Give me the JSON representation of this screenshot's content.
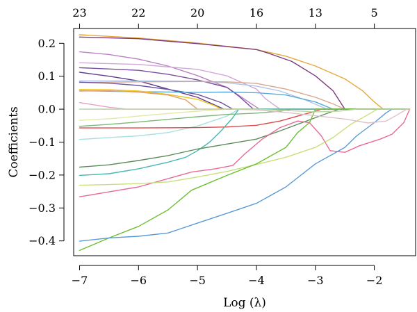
{
  "chart_data": {
    "type": "line",
    "title": "",
    "xlabel": "Log (λ)",
    "ylabel": "Coefficients",
    "xlim": [
      -7.1,
      -1.3
    ],
    "ylim": [
      -0.445,
      0.245
    ],
    "x_ticks": [
      {
        "value": -7,
        "label": "−7"
      },
      {
        "value": -6,
        "label": "−6"
      },
      {
        "value": -5,
        "label": "−5"
      },
      {
        "value": -4,
        "label": "−4"
      },
      {
        "value": -3,
        "label": "−3"
      },
      {
        "value": -2,
        "label": "−2"
      }
    ],
    "y_ticks": [
      {
        "value": 0.2,
        "label": "0.2"
      },
      {
        "value": 0.1,
        "label": "0.1"
      },
      {
        "value": 0.0,
        "label": "0.0"
      },
      {
        "value": -0.1,
        "label": "−0.1"
      },
      {
        "value": -0.2,
        "label": "−0.2"
      },
      {
        "value": -0.3,
        "label": "−0.3"
      },
      {
        "value": -0.4,
        "label": "−0.4"
      }
    ],
    "top_ticks": [
      {
        "value": -7,
        "label": "23"
      },
      {
        "value": -6,
        "label": "22"
      },
      {
        "value": -5,
        "label": "20"
      },
      {
        "value": -4,
        "label": "16"
      },
      {
        "value": -3,
        "label": "13"
      },
      {
        "value": -2,
        "label": "5"
      }
    ],
    "grid": false,
    "legend": "none",
    "series": [
      {
        "color": "#e6a83a",
        "points": [
          [
            -7,
            0.226
          ],
          [
            -6,
            0.216
          ],
          [
            -5,
            0.201
          ],
          [
            -4,
            0.181
          ],
          [
            -3.5,
            0.161
          ],
          [
            -3,
            0.131
          ],
          [
            -2.5,
            0.092
          ],
          [
            -2.2,
            0.056
          ],
          [
            -2.0,
            0.022
          ],
          [
            -1.85,
            0.0
          ],
          [
            -1.4,
            0.0
          ]
        ]
      },
      {
        "color": "#7b3a7a",
        "points": [
          [
            -7,
            0.219
          ],
          [
            -6,
            0.214
          ],
          [
            -5,
            0.199
          ],
          [
            -4.5,
            0.19
          ],
          [
            -4,
            0.181
          ],
          [
            -3.8,
            0.17
          ],
          [
            -3.4,
            0.145
          ],
          [
            -3.0,
            0.101
          ],
          [
            -2.7,
            0.056
          ],
          [
            -2.5,
            0.0
          ],
          [
            -1.4,
            0.0
          ]
        ]
      },
      {
        "color": "#b882c2",
        "points": [
          [
            -7,
            0.174
          ],
          [
            -6.5,
            0.166
          ],
          [
            -6,
            0.152
          ],
          [
            -5.5,
            0.131
          ],
          [
            -5,
            0.102
          ],
          [
            -4.5,
            0.066
          ],
          [
            -4.2,
            0.03
          ],
          [
            -3.95,
            0.0
          ],
          [
            -1.4,
            0.0
          ]
        ]
      },
      {
        "color": "#d1a8d8",
        "points": [
          [
            -7,
            0.141
          ],
          [
            -6,
            0.136
          ],
          [
            -5,
            0.121
          ],
          [
            -4.5,
            0.101
          ],
          [
            -4,
            0.061
          ],
          [
            -3.85,
            0.032
          ],
          [
            -3.6,
            0.0
          ],
          [
            -1.4,
            0.0
          ]
        ]
      },
      {
        "color": "#7a4c9e",
        "points": [
          [
            -7,
            0.126
          ],
          [
            -6,
            0.118
          ],
          [
            -5.5,
            0.106
          ],
          [
            -5,
            0.089
          ],
          [
            -4.5,
            0.066
          ],
          [
            -4.3,
            0.04
          ],
          [
            -4.05,
            0.0
          ],
          [
            -1.4,
            0.0
          ]
        ]
      },
      {
        "color": "#5d3a8a",
        "points": [
          [
            -7,
            0.112
          ],
          [
            -6.5,
            0.1
          ],
          [
            -6,
            0.086
          ],
          [
            -5.5,
            0.061
          ],
          [
            -5,
            0.036
          ],
          [
            -4.7,
            0.012
          ],
          [
            -4.55,
            0.0
          ],
          [
            -1.4,
            0.0
          ]
        ]
      },
      {
        "color": "#b0c4e8",
        "points": [
          [
            -7,
            0.086
          ],
          [
            -6,
            0.086
          ],
          [
            -5,
            0.085
          ],
          [
            -4.5,
            0.08
          ],
          [
            -4.0,
            0.07
          ],
          [
            -3.6,
            0.055
          ],
          [
            -3.2,
            0.03
          ],
          [
            -2.8,
            0.0
          ],
          [
            -1.4,
            0.0
          ]
        ]
      },
      {
        "color": "#d8a68a",
        "points": [
          [
            -7,
            0.081
          ],
          [
            -6,
            0.083
          ],
          [
            -5,
            0.084
          ],
          [
            -4.5,
            0.083
          ],
          [
            -4,
            0.078
          ],
          [
            -3.5,
            0.061
          ],
          [
            -3,
            0.036
          ],
          [
            -2.7,
            0.016
          ],
          [
            -2.5,
            0.0
          ],
          [
            -1.4,
            0.0
          ]
        ]
      },
      {
        "color": "#6b52a0",
        "points": [
          [
            -7,
            0.082
          ],
          [
            -6.5,
            0.079
          ],
          [
            -6,
            0.072
          ],
          [
            -5.5,
            0.06
          ],
          [
            -5,
            0.045
          ],
          [
            -4.6,
            0.02
          ],
          [
            -4.4,
            0.0
          ],
          [
            -1.4,
            0.0
          ]
        ]
      },
      {
        "color": "#5aa9d6",
        "points": [
          [
            -7,
            0.056
          ],
          [
            -6,
            0.053
          ],
          [
            -5,
            0.051
          ],
          [
            -4.5,
            0.052
          ],
          [
            -4,
            0.05
          ],
          [
            -3.5,
            0.043
          ],
          [
            -3,
            0.022
          ],
          [
            -2.7,
            0.0
          ],
          [
            -1.4,
            0.0
          ]
        ]
      },
      {
        "color": "#f0c418",
        "points": [
          [
            -7,
            0.06
          ],
          [
            -6.5,
            0.059
          ],
          [
            -6,
            0.055
          ],
          [
            -5.5,
            0.045
          ],
          [
            -5,
            0.03
          ],
          [
            -4.7,
            0.01
          ],
          [
            -4.6,
            0.0
          ],
          [
            -1.4,
            0.0
          ]
        ]
      },
      {
        "color": "#e8a0c8",
        "points": [
          [
            -7,
            0.02
          ],
          [
            -6.5,
            0.006
          ],
          [
            -6.2,
            0.0
          ],
          [
            -1.4,
            0.0
          ]
        ]
      },
      {
        "color": "#e0a070",
        "points": [
          [
            -7,
            0.055
          ],
          [
            -6.5,
            0.056
          ],
          [
            -6,
            0.052
          ],
          [
            -5.5,
            0.043
          ],
          [
            -5.2,
            0.028
          ],
          [
            -5.0,
            0.0
          ],
          [
            -1.4,
            0.0
          ]
        ]
      },
      {
        "color": "#e2e8a6",
        "points": [
          [
            -7,
            -0.034
          ],
          [
            -6.5,
            -0.029
          ],
          [
            -6,
            -0.021
          ],
          [
            -5.5,
            -0.013
          ],
          [
            -5,
            -0.006
          ],
          [
            -4.5,
            0.0
          ],
          [
            -1.4,
            0.0
          ]
        ]
      },
      {
        "color": "#a8e0e0",
        "points": [
          [
            -7,
            -0.092
          ],
          [
            -6.5,
            -0.086
          ],
          [
            -6,
            -0.081
          ],
          [
            -5.5,
            -0.071
          ],
          [
            -5,
            -0.051
          ],
          [
            -4.5,
            -0.021
          ],
          [
            -4.3,
            0.0
          ],
          [
            -1.4,
            0.0
          ]
        ]
      },
      {
        "color": "#e04848",
        "points": [
          [
            -7,
            -0.057
          ],
          [
            -6,
            -0.057
          ],
          [
            -5,
            -0.056
          ],
          [
            -4.5,
            -0.054
          ],
          [
            -4,
            -0.049
          ],
          [
            -3.6,
            -0.036
          ],
          [
            -3.3,
            -0.021
          ],
          [
            -3.0,
            -0.006
          ],
          [
            -2.9,
            0.0
          ],
          [
            -1.4,
            0.0
          ]
        ]
      },
      {
        "color": "#7ab87a",
        "points": [
          [
            -7,
            -0.052
          ],
          [
            -6.5,
            -0.046
          ],
          [
            -6,
            -0.039
          ],
          [
            -5.5,
            -0.031
          ],
          [
            -5,
            -0.023
          ],
          [
            -4.5,
            -0.016
          ],
          [
            -4,
            -0.012
          ],
          [
            -3.6,
            -0.006
          ],
          [
            -3.4,
            0.0
          ],
          [
            -1.4,
            0.0
          ]
        ]
      },
      {
        "color": "#46b8b0",
        "points": [
          [
            -7,
            -0.201
          ],
          [
            -6.5,
            -0.196
          ],
          [
            -6,
            -0.181
          ],
          [
            -5.5,
            -0.161
          ],
          [
            -5.2,
            -0.146
          ],
          [
            -5,
            -0.126
          ],
          [
            -4.8,
            -0.101
          ],
          [
            -4.6,
            -0.066
          ],
          [
            -4.4,
            -0.026
          ],
          [
            -4.3,
            0.0
          ],
          [
            -1.4,
            0.0
          ]
        ]
      },
      {
        "color": "#5a8c5a",
        "points": [
          [
            -7,
            -0.176
          ],
          [
            -6.5,
            -0.169
          ],
          [
            -6,
            -0.156
          ],
          [
            -5.5,
            -0.141
          ],
          [
            -5,
            -0.121
          ],
          [
            -4.5,
            -0.106
          ],
          [
            -4,
            -0.091
          ],
          [
            -3.6,
            -0.066
          ],
          [
            -3.3,
            -0.046
          ],
          [
            -3.0,
            -0.026
          ],
          [
            -2.7,
            -0.006
          ],
          [
            -2.6,
            0.0
          ],
          [
            -1.4,
            0.0
          ]
        ]
      },
      {
        "color": "#e86a96",
        "points": [
          [
            -7,
            -0.266
          ],
          [
            -6.5,
            -0.251
          ],
          [
            -6,
            -0.236
          ],
          [
            -5.5,
            -0.211
          ],
          [
            -5.1,
            -0.191
          ],
          [
            -4.7,
            -0.181
          ],
          [
            -4.4,
            -0.171
          ],
          [
            -4.2,
            -0.136
          ],
          [
            -3.9,
            -0.091
          ],
          [
            -3.6,
            -0.056
          ],
          [
            -3.3,
            -0.036
          ],
          [
            -3.1,
            -0.041
          ],
          [
            -2.9,
            -0.081
          ],
          [
            -2.75,
            -0.126
          ],
          [
            -2.5,
            -0.131
          ],
          [
            -2.25,
            -0.111
          ],
          [
            -1.9,
            -0.091
          ],
          [
            -1.7,
            -0.076
          ],
          [
            -1.5,
            -0.041
          ],
          [
            -1.4,
            0.0
          ]
        ]
      },
      {
        "color": "#c8e07a",
        "points": [
          [
            -7,
            -0.231
          ],
          [
            -6.5,
            -0.229
          ],
          [
            -6,
            -0.226
          ],
          [
            -5.5,
            -0.221
          ],
          [
            -5,
            -0.206
          ],
          [
            -4.5,
            -0.189
          ],
          [
            -4,
            -0.168
          ],
          [
            -3.5,
            -0.146
          ],
          [
            -3,
            -0.116
          ],
          [
            -2.7,
            -0.086
          ],
          [
            -2.4,
            -0.046
          ],
          [
            -2.1,
            -0.016
          ],
          [
            -1.95,
            0.0
          ],
          [
            -1.4,
            0.0
          ]
        ]
      },
      {
        "color": "#6cc030",
        "points": [
          [
            -7,
            -0.429
          ],
          [
            -6.5,
            -0.391
          ],
          [
            -6,
            -0.356
          ],
          [
            -5.5,
            -0.306
          ],
          [
            -5.1,
            -0.246
          ],
          [
            -4.5,
            -0.201
          ],
          [
            -4,
            -0.166
          ],
          [
            -3.5,
            -0.116
          ],
          [
            -3.3,
            -0.071
          ],
          [
            -3.1,
            -0.041
          ],
          [
            -3.0,
            0.0
          ],
          [
            -1.4,
            0.0
          ]
        ]
      },
      {
        "color": "#5b9ad6",
        "points": [
          [
            -7,
            -0.401
          ],
          [
            -6.5,
            -0.391
          ],
          [
            -6,
            -0.386
          ],
          [
            -5.5,
            -0.376
          ],
          [
            -5,
            -0.346
          ],
          [
            -4.5,
            -0.316
          ],
          [
            -4,
            -0.286
          ],
          [
            -3.5,
            -0.236
          ],
          [
            -3,
            -0.166
          ],
          [
            -2.5,
            -0.116
          ],
          [
            -2.3,
            -0.081
          ],
          [
            -2.0,
            -0.041
          ],
          [
            -1.8,
            -0.011
          ],
          [
            -1.7,
            0.0
          ],
          [
            -1.4,
            0.0
          ]
        ]
      },
      {
        "color": "#e0bfc6",
        "points": [
          [
            -7,
            0.0
          ],
          [
            -4.5,
            0.0
          ],
          [
            -4,
            -0.002
          ],
          [
            -3.5,
            -0.01
          ],
          [
            -3.0,
            -0.02
          ],
          [
            -2.5,
            -0.03
          ],
          [
            -2.1,
            -0.042
          ],
          [
            -1.8,
            -0.036
          ],
          [
            -1.6,
            -0.016
          ],
          [
            -1.45,
            0.0
          ],
          [
            -1.4,
            0.0
          ]
        ]
      },
      {
        "color": "#b8d8a0",
        "points": [
          [
            -7,
            0.0
          ],
          [
            -4.0,
            0.0
          ],
          [
            -3.5,
            -0.004
          ],
          [
            -3.0,
            -0.008
          ],
          [
            -2.6,
            -0.006
          ],
          [
            -2.3,
            0.0
          ],
          [
            -1.4,
            0.0
          ]
        ]
      }
    ]
  }
}
